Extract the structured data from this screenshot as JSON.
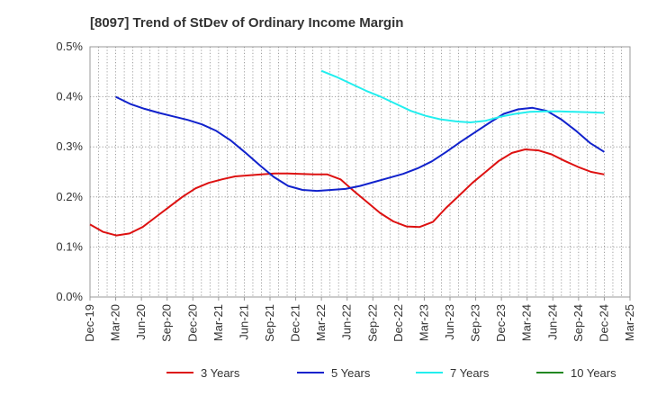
{
  "chart_data": {
    "type": "line",
    "title": "[8097]  Trend of StDev of Ordinary Income Margin",
    "xlabel": "",
    "ylabel": "",
    "x_ticks": [
      "Dec-19",
      "Mar-20",
      "Jun-20",
      "Sep-20",
      "Dec-20",
      "Mar-21",
      "Jun-21",
      "Sep-21",
      "Dec-21",
      "Mar-22",
      "Jun-22",
      "Sep-22",
      "Dec-22",
      "Mar-23",
      "Jun-23",
      "Sep-23",
      "Dec-23",
      "Mar-24",
      "Jun-24",
      "Sep-24",
      "Dec-24",
      "Mar-25"
    ],
    "y_ticks": [
      "0.0%",
      "0.1%",
      "0.2%",
      "0.3%",
      "0.4%",
      "0.5%"
    ],
    "ylim": [
      0,
      0.5
    ],
    "grid": "dotted",
    "legend_position": "bottom",
    "series": [
      {
        "name": "3 Years",
        "color": "#dd1111",
        "values": [
          0.145,
          0.13,
          0.123,
          0.127,
          0.14,
          0.16,
          0.18,
          0.2,
          0.217,
          0.228,
          0.235,
          0.241,
          0.243,
          0.245,
          0.247,
          0.247,
          0.246,
          0.245,
          0.245,
          0.235,
          0.212,
          0.19,
          0.168,
          0.151,
          0.141,
          0.14,
          0.15,
          0.178,
          0.203,
          0.228,
          0.25,
          0.272,
          0.288,
          0.295,
          0.293,
          0.285,
          0.272,
          0.26,
          0.25,
          0.245
        ]
      },
      {
        "name": "5 Years",
        "color": "#1122cc",
        "values": [
          null,
          0.4,
          0.386,
          0.376,
          0.368,
          0.361,
          0.354,
          0.345,
          0.332,
          0.313,
          0.289,
          0.264,
          0.24,
          0.222,
          0.214,
          0.212,
          0.214,
          0.216,
          0.222,
          0.23,
          0.238,
          0.246,
          0.257,
          0.271,
          0.29,
          0.31,
          0.329,
          0.348,
          0.366,
          0.375,
          0.378,
          0.372,
          0.355,
          0.333,
          0.308,
          0.29
        ]
      },
      {
        "name": "7 Years",
        "color": "#22eeee",
        "values": [
          null,
          null,
          null,
          null,
          null,
          null,
          null,
          null,
          null,
          0.452,
          0.44,
          0.426,
          0.412,
          0.4,
          0.386,
          0.372,
          0.362,
          0.355,
          0.351,
          0.349,
          0.352,
          0.36,
          0.366,
          0.37,
          0.371,
          0.371,
          0.37,
          0.369,
          0.368
        ]
      },
      {
        "name": "10 Years",
        "color": "#228822",
        "values": []
      }
    ],
    "series_start_month": [
      0,
      3,
      3,
      0
    ]
  }
}
